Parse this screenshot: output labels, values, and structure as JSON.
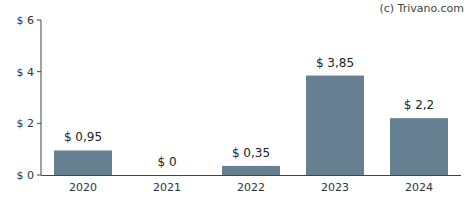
{
  "chart_data": {
    "type": "bar",
    "annotation": "(c) Trivano.com",
    "categories": [
      "2020",
      "2021",
      "2022",
      "2023",
      "2024"
    ],
    "values": [
      0.95,
      0,
      0.35,
      3.85,
      2.2
    ],
    "value_labels": [
      "$ 0,95",
      "$ 0",
      "$ 0,35",
      "$ 3,85",
      "$ 2,2"
    ],
    "color": "#667f91",
    "ylim": [
      0,
      6
    ],
    "yticks": [
      {
        "value": 0,
        "label": "$ 0"
      },
      {
        "value": 2,
        "label": "$ 2"
      },
      {
        "value": 4,
        "label": "$ 4"
      },
      {
        "value": 6,
        "label": "$ 6"
      }
    ],
    "grid": false,
    "data_labels": true
  }
}
